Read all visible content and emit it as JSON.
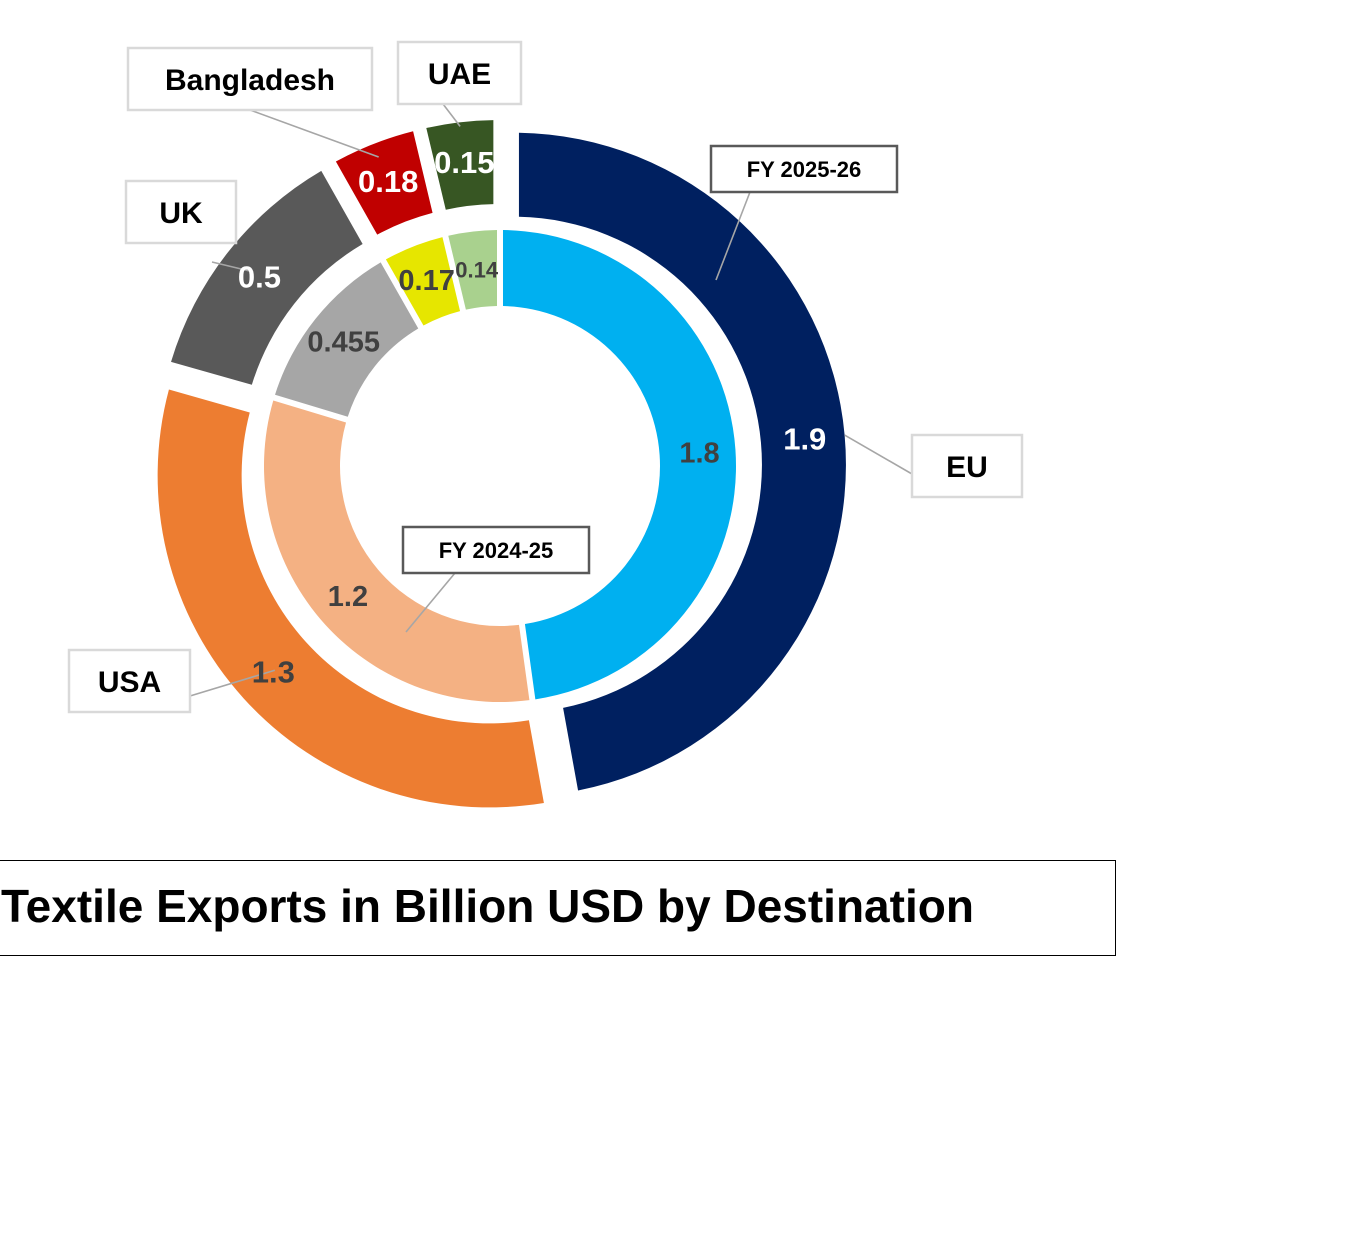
{
  "chart_data": {
    "type": "doughnut",
    "title": "Textile Exports in Billion USD by Destination",
    "categories": [
      "EU",
      "USA",
      "UK",
      "Bangladesh",
      "UAE"
    ],
    "series": [
      {
        "name": "FY 2024-25",
        "ring": "inner",
        "values": [
          1.8,
          1.2,
          0.455,
          0.17,
          0.14
        ],
        "value_labels": [
          "1.8",
          "1.2",
          "0.455",
          "0.17",
          "0.14"
        ],
        "colors": [
          "#00B0F0",
          "#F4B183",
          "#A6A6A6",
          "#E6E600",
          "#A9D18E"
        ],
        "label_colors": [
          "#404040",
          "#404040",
          "#404040",
          "#404040",
          "#404040"
        ]
      },
      {
        "name": "FY 2025-26",
        "ring": "outer",
        "values": [
          1.9,
          1.3,
          0.5,
          0.18,
          0.15
        ],
        "value_labels": [
          "1.9",
          "1.3",
          "0.5",
          "0.18",
          "0.15"
        ],
        "colors": [
          "#002060",
          "#ED7D31",
          "#595959",
          "#C00000",
          "#375623"
        ],
        "label_colors": [
          "#FFFFFF",
          "#404040",
          "#FFFFFF",
          "#FFFFFF",
          "#FFFFFF"
        ]
      }
    ],
    "legend": "none (category callouts)"
  }
}
